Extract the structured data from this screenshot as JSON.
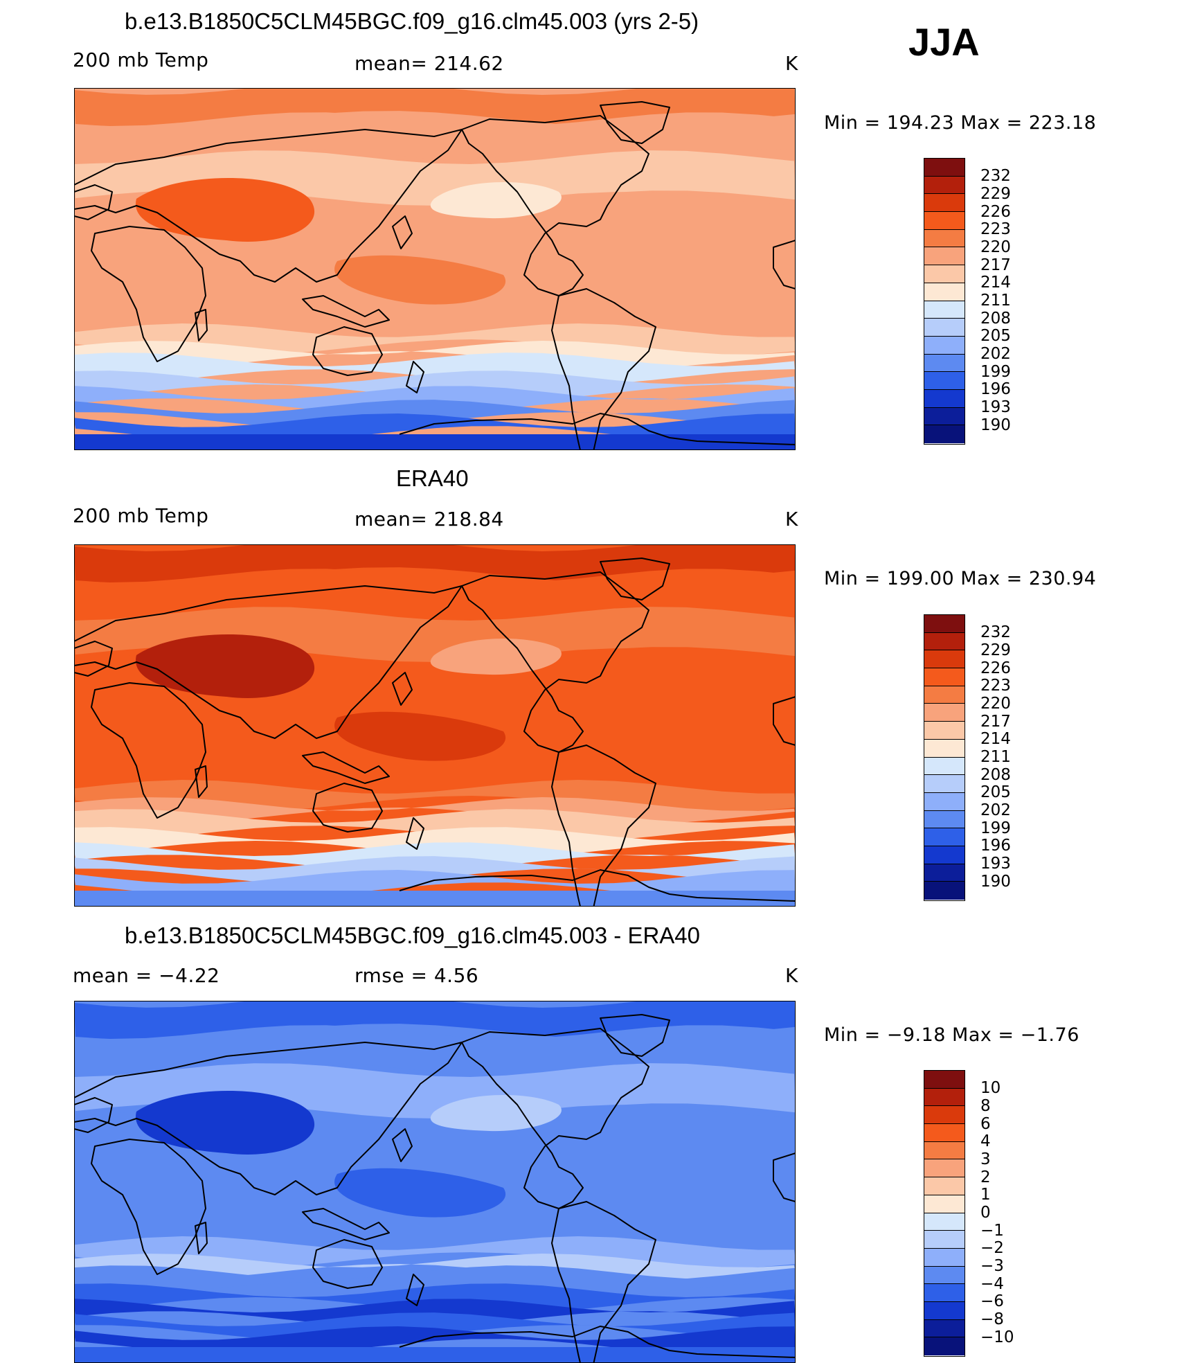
{
  "season": "JJA",
  "panels": [
    {
      "title": "b.e13.B1850C5CLM45BGC.f09_g16.clm45.003 (yrs 2-5)",
      "left_label": "200 mb Temp",
      "center_label": "mean= 214.62",
      "units": "K",
      "minmax": "Min = 194.23 Max = 223.18",
      "cbar_labels": [
        "232",
        "229",
        "226",
        "223",
        "220",
        "217",
        "214",
        "211",
        "208",
        "205",
        "202",
        "199",
        "196",
        "193",
        "190"
      ],
      "cbar_colors": [
        "#7e0f0f",
        "#b3200c",
        "#da3a0c",
        "#f45a1c",
        "#f47c43",
        "#f8a37c",
        "#fbc8a8",
        "#fde8d4",
        "#d5e7fb",
        "#b6cdfa",
        "#8eaffa",
        "#5d8af1",
        "#2e60e8",
        "#1439cf",
        "#0c1e9a",
        "#08127a"
      ],
      "map_colors": {
        "band1": "#f47c43",
        "band2": "#f8a37c",
        "band3": "#fbc8a8",
        "band4": "#fde8d4",
        "cool1": "#d5e7fb",
        "cool2": "#b6cdfa",
        "cool3": "#8eaffa",
        "cool4": "#5d8af1",
        "cool5": "#2e60e8",
        "cool6": "#1439cf",
        "hot": "#f45a1c"
      }
    },
    {
      "title": "ERA40",
      "left_label": "200 mb Temp",
      "center_label": "mean= 218.84",
      "units": "K",
      "minmax": "Min = 199.00 Max = 230.94",
      "cbar_labels": [
        "232",
        "229",
        "226",
        "223",
        "220",
        "217",
        "214",
        "211",
        "208",
        "205",
        "202",
        "199",
        "196",
        "193",
        "190"
      ],
      "cbar_colors": [
        "#7e0f0f",
        "#b3200c",
        "#da3a0c",
        "#f45a1c",
        "#f47c43",
        "#f8a37c",
        "#fbc8a8",
        "#fde8d4",
        "#d5e7fb",
        "#b6cdfa",
        "#8eaffa",
        "#5d8af1",
        "#2e60e8",
        "#1439cf",
        "#0c1e9a",
        "#08127a"
      ],
      "map_colors": {
        "band1": "#da3a0c",
        "band2": "#f45a1c",
        "band3": "#f47c43",
        "band4": "#f8a37c",
        "cool1": "#fbc8a8",
        "cool2": "#fde8d4",
        "cool3": "#d5e7fb",
        "cool4": "#b6cdfa",
        "cool5": "#8eaffa",
        "cool6": "#5d8af1",
        "hot": "#b3200c"
      }
    },
    {
      "title": "b.e13.B1850C5CLM45BGC.f09_g16.clm45.003 - ERA40",
      "left_label": "mean = −4.22",
      "center_label": "rmse = 4.56",
      "units": "K",
      "minmax": "Min = −9.18 Max = −1.76",
      "cbar_labels": [
        "10",
        "8",
        "6",
        "4",
        "3",
        "2",
        "1",
        "0",
        "−1",
        "−2",
        "−3",
        "−4",
        "−6",
        "−8",
        "−10"
      ],
      "cbar_colors": [
        "#7e0f0f",
        "#b3200c",
        "#da3a0c",
        "#f45a1c",
        "#f47c43",
        "#f8a37c",
        "#fbc8a8",
        "#fde8d4",
        "#d5e7fb",
        "#b6cdfa",
        "#8eaffa",
        "#5d8af1",
        "#2e60e8",
        "#1439cf",
        "#0c1e9a",
        "#08127a"
      ],
      "map_colors": {
        "band1": "#2e60e8",
        "band2": "#5d8af1",
        "band3": "#8eaffa",
        "band4": "#b6cdfa",
        "cool1": "#5d8af1",
        "cool2": "#2e60e8",
        "cool3": "#1439cf",
        "cool4": "#2e60e8",
        "cool5": "#1439cf",
        "cool6": "#2e60e8",
        "hot": "#1439cf"
      }
    }
  ]
}
